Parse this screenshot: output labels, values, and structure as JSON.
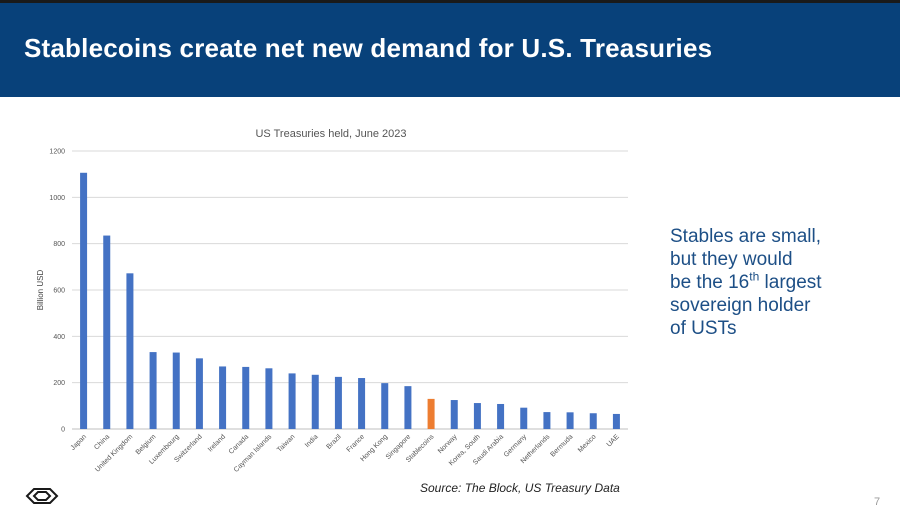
{
  "slide": {
    "title": "Stablecoins create net new demand for U.S. Treasuries",
    "side_text": {
      "line1": "Stables are small,",
      "line2": "but they would",
      "line3_pre": "be the 16",
      "line3_sup": "th",
      "line3_post": " largest",
      "line4": "sovereign holder",
      "line5": "of USTs"
    },
    "source": "Source: The Block, US Treasury Data",
    "page_number": "7",
    "logo_icon": "stacked-chevron-logo-icon"
  },
  "chart_data": {
    "type": "bar",
    "title": "US Treasuries held, June 2023",
    "ylabel": "Billion USD",
    "xlabel": "",
    "ylim": [
      0,
      1200
    ],
    "yticks": [
      0,
      200,
      400,
      600,
      800,
      1000,
      1200
    ],
    "grid": true,
    "categories": [
      "Japan",
      "China",
      "United Kingdom",
      "Belgium",
      "Luxembourg",
      "Switzerland",
      "Ireland",
      "Canada",
      "Cayman Islands",
      "Taiwan",
      "India",
      "Brazil",
      "France",
      "Hong Kong",
      "Singapore",
      "Stablecoins",
      "Norway",
      "Korea, South",
      "Saudi Arabia",
      "Germany",
      "Netherlands",
      "Bermuda",
      "Mexico",
      "UAE"
    ],
    "values": [
      1106,
      835,
      672,
      332,
      330,
      305,
      270,
      268,
      262,
      240,
      234,
      225,
      220,
      198,
      185,
      130,
      125,
      112,
      108,
      92,
      73,
      72,
      68,
      65
    ],
    "colors": {
      "default": "#4472c4",
      "highlight": "#ed7d31"
    },
    "highlight_category": "Stablecoins"
  }
}
